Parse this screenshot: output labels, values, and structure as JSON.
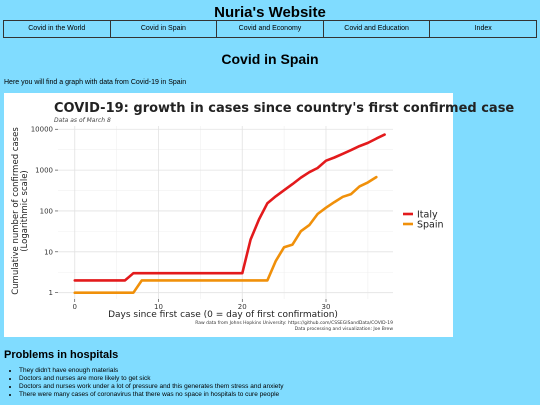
{
  "site": {
    "title": "Nuria's Website"
  },
  "nav": [
    {
      "label": "Covid in the World"
    },
    {
      "label": "Covid in Spain"
    },
    {
      "label": "Covid and Economy"
    },
    {
      "label": "Covid and Education"
    },
    {
      "label": "Index"
    }
  ],
  "page": {
    "title": "Covid in Spain",
    "intro": "Here you will find a graph with data from Covid-19 in Spain"
  },
  "chart_data": {
    "type": "line",
    "title": "COVID-19: growth in cases since country's first confirmed case",
    "subtitle": "Data as of March 8",
    "xlabel": "Days since first case (0 = day of first confirmation)",
    "ylabel": "Cumulative number of confirmed cases",
    "ylabel2": "(Logarithmic scale)",
    "yscale": "log",
    "xlim": [
      -2,
      38
    ],
    "ylim": [
      0.7,
      12000
    ],
    "xticks": [
      0,
      10,
      20,
      30
    ],
    "xtick_labels": [
      "0",
      "10",
      "20",
      "30"
    ],
    "yticks": [
      1,
      10,
      100,
      1000,
      10000
    ],
    "ytick_labels": [
      "1",
      "10",
      "100",
      "1000",
      "10000"
    ],
    "grid": true,
    "legend_position": "right",
    "source": "Raw data from Johns Hopkins University: https://github.com/CSSEGISandData/COVID-19",
    "credit": "Data processing and visualization: Joe Brew",
    "series": [
      {
        "name": "Italy",
        "color": "#e31a1c",
        "x": [
          0,
          6,
          7,
          20,
          21,
          22,
          23,
          24,
          25,
          26,
          27,
          28,
          29,
          30,
          31,
          32,
          33,
          34,
          35,
          36,
          37
        ],
        "y": [
          2,
          2,
          3,
          3,
          20,
          62,
          155,
          229,
          322,
          453,
          655,
          888,
          1128,
          1694,
          2036,
          2502,
          3089,
          3858,
          4636,
          5883,
          7375
        ]
      },
      {
        "name": "Spain",
        "color": "#f0900a",
        "x": [
          0,
          7,
          8,
          23,
          24,
          25,
          26,
          27,
          28,
          29,
          30,
          31,
          32,
          33,
          34,
          35,
          36
        ],
        "y": [
          1,
          1,
          2,
          2,
          6,
          13,
          15,
          32,
          45,
          84,
          120,
          165,
          222,
          259,
          400,
          500,
          673
        ]
      }
    ]
  },
  "problems": {
    "title": "Problems in hospitals",
    "items": [
      "They didn't have enough materials",
      "Doctors and nurses are more likely to get sick",
      "Doctors and nurses work under a lot of pressure and this generates them stress and anxiety",
      "There were many cases of coronavirus that there was no space in hospitals to cure people"
    ]
  }
}
